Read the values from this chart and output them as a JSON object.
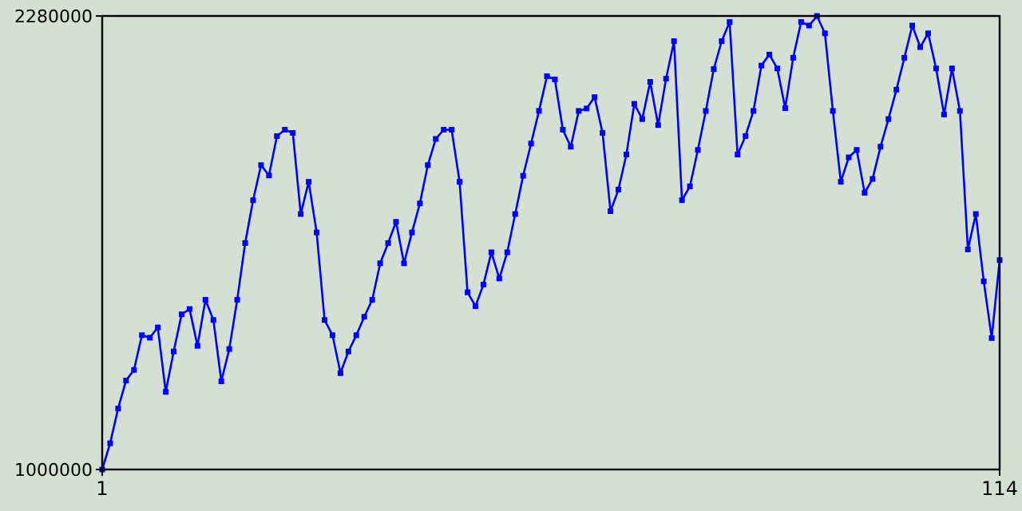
{
  "chart_data": {
    "type": "line",
    "x": [
      1,
      2,
      3,
      4,
      5,
      6,
      7,
      8,
      9,
      10,
      11,
      12,
      13,
      14,
      15,
      16,
      17,
      18,
      19,
      20,
      21,
      22,
      23,
      24,
      25,
      26,
      27,
      28,
      29,
      30,
      31,
      32,
      33,
      34,
      35,
      36,
      37,
      38,
      39,
      40,
      41,
      42,
      43,
      44,
      45,
      46,
      47,
      48,
      49,
      50,
      51,
      52,
      53,
      54,
      55,
      56,
      57,
      58,
      59,
      60,
      61,
      62,
      63,
      64,
      65,
      66,
      67,
      68,
      69,
      70,
      71,
      72,
      73,
      74,
      75,
      76,
      77,
      78,
      79,
      80,
      81,
      82,
      83,
      84,
      85,
      86,
      87,
      88,
      89,
      90,
      91,
      92,
      93,
      94,
      95,
      96,
      97,
      98,
      99,
      100,
      101,
      102,
      103,
      104,
      105,
      106,
      107,
      108,
      109,
      110,
      111,
      112,
      113,
      114
    ],
    "series": [
      {
        "color": "#0000ff",
        "values": [
          1000000,
          1074000,
          1172000,
          1251000,
          1281000,
          1379000,
          1372000,
          1401000,
          1219000,
          1333000,
          1438000,
          1453000,
          1349000,
          1479000,
          1422000,
          1249000,
          1340000,
          1479000,
          1639000,
          1760000,
          1859000,
          1830000,
          1941000,
          1959000,
          1950000,
          1721000,
          1812000,
          1669000,
          1422000,
          1379000,
          1272000,
          1333000,
          1379000,
          1431000,
          1479000,
          1582000,
          1639000,
          1699000,
          1582000,
          1669000,
          1751000,
          1859000,
          1933000,
          1959000,
          1959000,
          1812000,
          1500000,
          1461000,
          1522000,
          1613000,
          1539000,
          1613000,
          1721000,
          1829000,
          1920000,
          2012000,
          2110000,
          2101000,
          1959000,
          1911000,
          2012000,
          2019000,
          2051000,
          1950000,
          1729000,
          1790000,
          1889000,
          2032000,
          1989000,
          2094000,
          1972000,
          2103000,
          2209000,
          1760000,
          1799000,
          1902000,
          2012000,
          2130000,
          2209000,
          2263000,
          1889000,
          1941000,
          2012000,
          2140000,
          2171000,
          2132000,
          2020000,
          2162000,
          2263000,
          2253000,
          2280000,
          2231000,
          2012000,
          1812000,
          1881000,
          1902000,
          1781000,
          1820000,
          1911000,
          1989000,
          2072000,
          2162000,
          2253000,
          2192000,
          2231000,
          2132000,
          2002000,
          2132000,
          2012000,
          1621000,
          1721000,
          1531000,
          1371000,
          1591000
        ]
      }
    ],
    "xlim": [
      1,
      114
    ],
    "xticks": [
      1,
      114
    ],
    "ylim": [
      1000000,
      2280000
    ],
    "yticks": [
      1000000,
      2280000
    ],
    "marker": "square",
    "line_style": "solid"
  }
}
